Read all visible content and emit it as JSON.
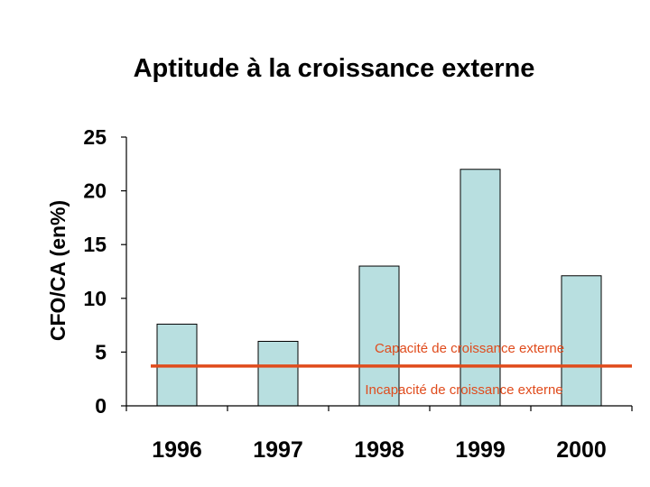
{
  "chart_data": {
    "type": "bar",
    "title": "Aptitude à la croissance externe",
    "xlabel": "",
    "ylabel": "CFO/CA (en%)",
    "categories": [
      "1996",
      "1997",
      "1998",
      "1999",
      "2000"
    ],
    "values": [
      7.6,
      6.0,
      13.0,
      22.0,
      12.1
    ],
    "ylim": [
      0,
      25
    ],
    "yticks": [
      "0",
      "5",
      "10",
      "15",
      "20",
      "25"
    ],
    "grid": false,
    "legend": "none",
    "bar_color": "#b8dfe0",
    "threshold": {
      "value": 3.7,
      "color": "#e04b1c",
      "label_above": "Capacité de croissance externe",
      "label_below": "Incapacité de croissance externe"
    }
  }
}
